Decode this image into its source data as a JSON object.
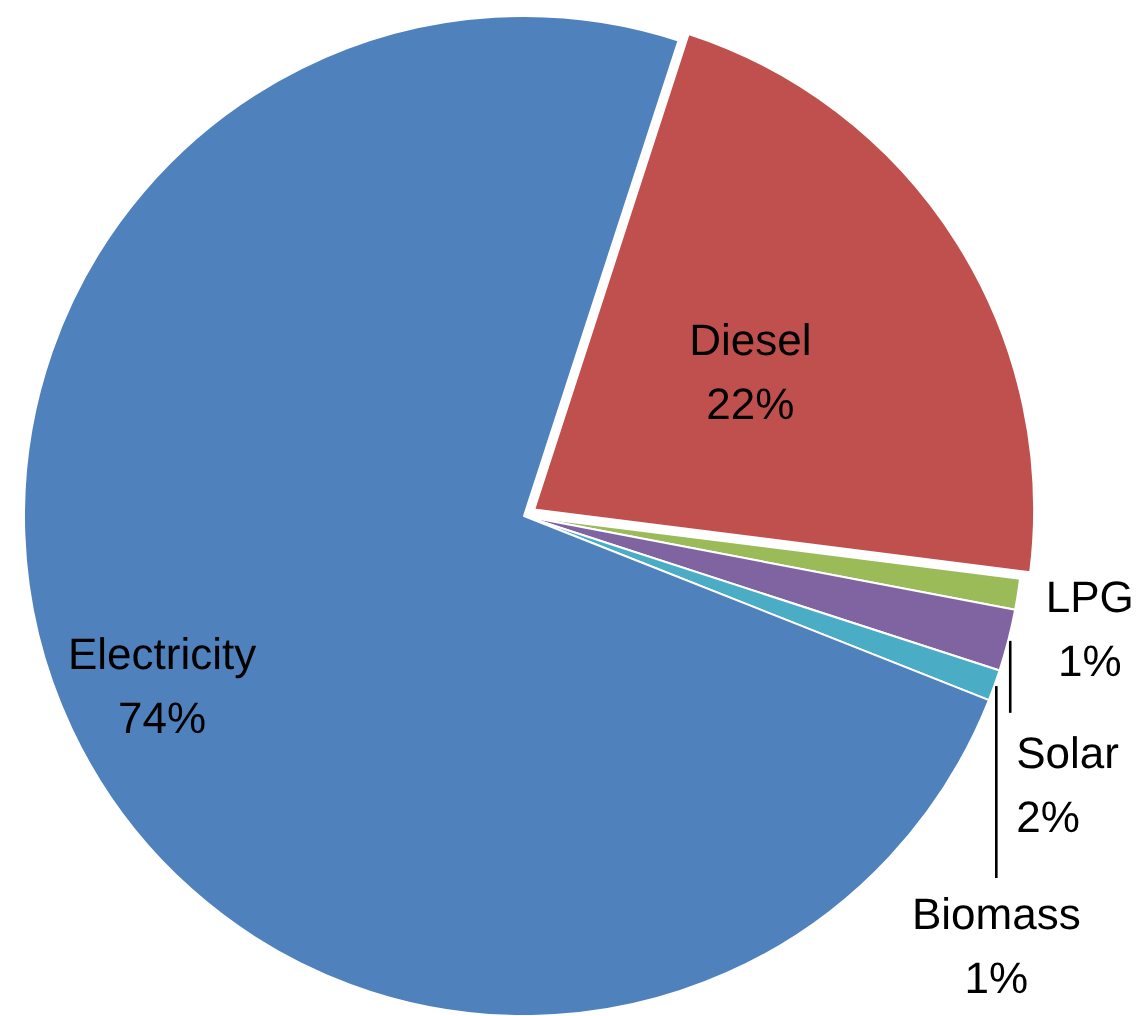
{
  "chart_data": {
    "type": "pie",
    "categories": [
      "Diesel",
      "LPG",
      "Solar",
      "Biomass",
      "Electricity"
    ],
    "values": [
      22,
      1,
      2,
      1,
      74
    ],
    "colors": [
      "#c0504d",
      "#9bbb59",
      "#8064a2",
      "#4bacc6",
      "#4f81bd"
    ],
    "value_labels": [
      "22%",
      "1%",
      "2%",
      "1%",
      "74%"
    ]
  }
}
